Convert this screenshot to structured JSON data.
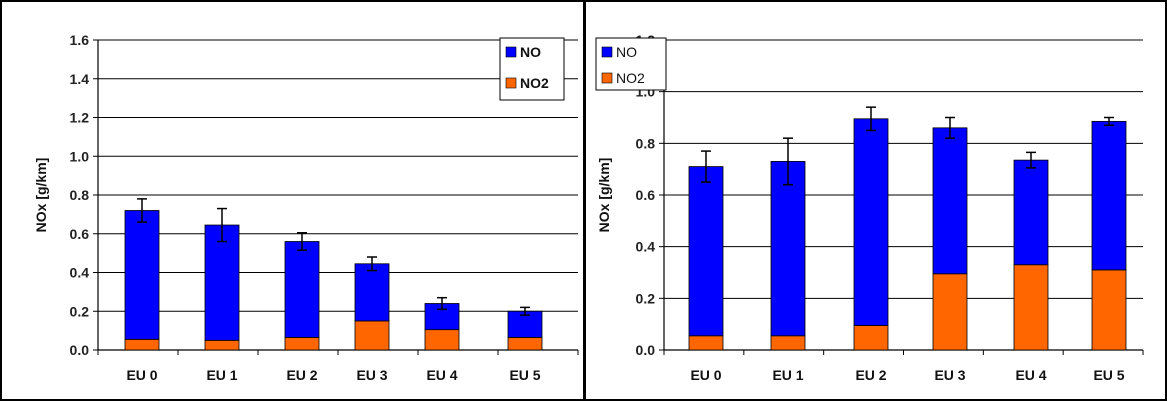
{
  "colors": {
    "NO": "#0000ff",
    "NO2": "#ff6600",
    "grid": "#000000",
    "divider": "#000000"
  },
  "chart_data": [
    {
      "type": "bar",
      "stacked": true,
      "categories": [
        "EU 0",
        "EU 1",
        "EU 2",
        "EU 3",
        "EU 4",
        "EU 5"
      ],
      "series": [
        {
          "name": "NO",
          "values": [
            0.665,
            0.595,
            0.495,
            0.295,
            0.135,
            0.135
          ]
        },
        {
          "name": "NO2",
          "values": [
            0.055,
            0.05,
            0.065,
            0.15,
            0.105,
            0.065
          ]
        }
      ],
      "error_bars": [
        0.06,
        0.085,
        0.045,
        0.035,
        0.03,
        0.02
      ],
      "ylabel": "NOx [g/km]",
      "ylim": [
        0,
        1.6
      ],
      "yticks": [
        "0.0",
        "0.2",
        "0.4",
        "0.6",
        "0.8",
        "1.0",
        "1.2",
        "1.4",
        "1.6"
      ],
      "grid": true,
      "legend": "top-right"
    },
    {
      "type": "bar",
      "stacked": true,
      "categories": [
        "EU 0",
        "EU 1",
        "EU 2",
        "EU 3",
        "EU 4",
        "EU 5"
      ],
      "series": [
        {
          "name": "NO",
          "values": [
            0.655,
            0.675,
            0.8,
            0.565,
            0.405,
            0.575
          ]
        },
        {
          "name": "NO2",
          "values": [
            0.055,
            0.055,
            0.095,
            0.295,
            0.33,
            0.31
          ]
        }
      ],
      "error_bars": [
        0.06,
        0.09,
        0.045,
        0.04,
        0.03,
        0.015
      ],
      "ylabel": "NOx [g/km]",
      "ylim": [
        0,
        1.2
      ],
      "yticks": [
        "0.0",
        "0.2",
        "0.4",
        "0.6",
        "0.8",
        "1.0",
        "1.2"
      ],
      "grid": true,
      "legend": "top-left"
    }
  ]
}
